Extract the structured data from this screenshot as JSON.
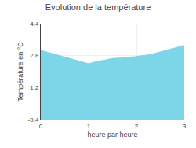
{
  "chart_data": {
    "type": "area",
    "title": "Evolution de la température",
    "xlabel": "heure par heure",
    "ylabel": "Température en °C",
    "x": [
      0,
      0.3,
      0.6,
      0.9,
      1.0,
      1.1,
      1.3,
      1.5,
      1.7,
      2.0,
      2.3,
      2.6,
      3.0
    ],
    "values": [
      3.05,
      2.85,
      2.65,
      2.45,
      2.38,
      2.45,
      2.55,
      2.65,
      2.68,
      2.75,
      2.85,
      3.05,
      3.3
    ],
    "color": "#7dd6e8",
    "xlim": [
      0,
      3
    ],
    "ylim": [
      -0.4,
      4.4
    ],
    "xticks": [
      0,
      1,
      2,
      3
    ],
    "yticks": [
      -0.4,
      1.2,
      2.8,
      4.4
    ],
    "grid": true
  }
}
